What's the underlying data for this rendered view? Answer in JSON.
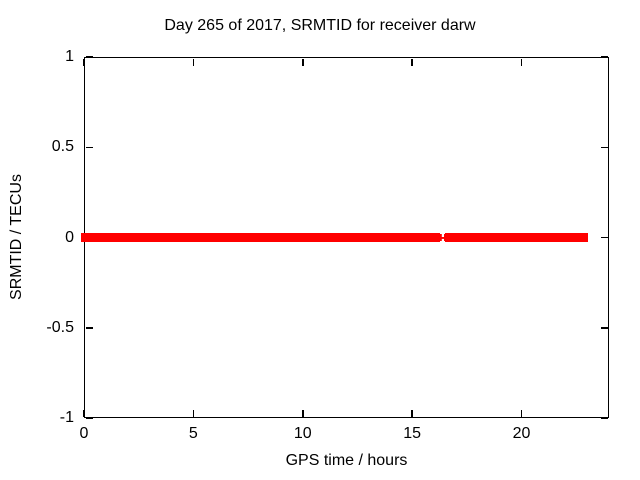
{
  "chart_data": {
    "type": "line",
    "title": "Day 265 of 2017, SRMTID for receiver darw",
    "xlabel": "GPS time / hours",
    "ylabel": "SRMTID / TECUs",
    "xlim": [
      0,
      24
    ],
    "ylim": [
      -1,
      1
    ],
    "xticks": [
      0,
      5,
      10,
      15,
      20
    ],
    "yticks": [
      -1,
      -0.5,
      0,
      0.5,
      1
    ],
    "grid": true,
    "legend": false,
    "marker_style": "plus",
    "series": [
      {
        "name": "SRMTID",
        "color": "#ff0000",
        "y_constant": 0,
        "segments": [
          {
            "x_start": 0,
            "x_end": 16.1,
            "y": 0
          },
          {
            "x_start": 16.65,
            "x_end": 22.9,
            "y": 0
          }
        ],
        "sparse_points": [
          {
            "x": 16.3,
            "y": 0
          },
          {
            "x": 16.5,
            "y": 0
          }
        ]
      }
    ]
  },
  "colors": {
    "background": "#ffffff",
    "axis": "#000000",
    "grid": "#9b9b9b",
    "text": "#000000",
    "series": "#ff0000"
  }
}
